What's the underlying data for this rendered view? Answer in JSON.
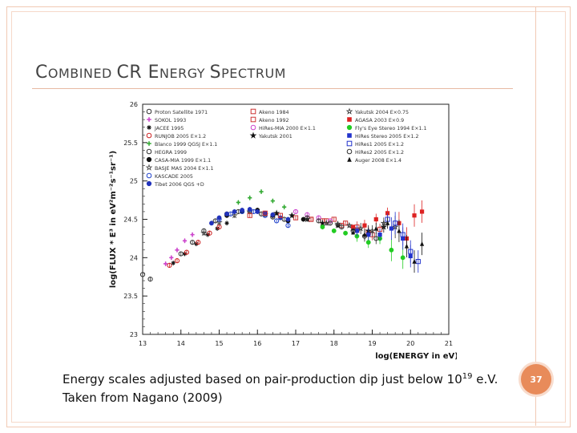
{
  "slide": {
    "title_parts": [
      {
        "text": "C",
        "small": false
      },
      {
        "text": "OMBINED ",
        "small": true
      },
      {
        "text": "CR E",
        "small": false
      },
      {
        "text": "NERGY ",
        "small": true
      },
      {
        "text": "S",
        "small": false
      },
      {
        "text": "PECTRUM",
        "small": true
      }
    ],
    "caption_line1_pre": "Energy scales adjusted based on pair-production dip just below 10",
    "caption_sup": "19",
    "caption_line1_post": " e.V.",
    "caption_line2": "Taken from Nagano (2009)",
    "page_number": "37",
    "accent_color": "#e88b5a"
  },
  "chart_data": {
    "type": "scatter",
    "xlabel": "log(ENERGY in eV)",
    "ylabel": "log(FLUX * E³ in eV²m⁻²s⁻¹sr⁻¹)",
    "xlim": [
      13,
      21
    ],
    "ylim": [
      23,
      26
    ],
    "xticks": [
      "13",
      "14",
      "15",
      "16",
      "17",
      "18",
      "19",
      "20",
      "21"
    ],
    "yticks": [
      "23",
      "23.5",
      "24",
      "24.5",
      "25",
      "25.5",
      "26"
    ],
    "legend_position": "top",
    "legend": [
      {
        "label": "Proton Satellite 1971",
        "marker": "circle-open",
        "color": "#333333"
      },
      {
        "label": "SOKOL 1993",
        "marker": "cross-open",
        "color": "#cc44cc"
      },
      {
        "label": "JACEE 1995",
        "marker": "asterisk",
        "color": "#111111"
      },
      {
        "label": "RUNJOB 2005 E×1.2",
        "marker": "circle-open",
        "color": "#cc2222"
      },
      {
        "label": "Blanco 1999 QGSJ E×1.1",
        "marker": "cross-open",
        "color": "#33aa33"
      },
      {
        "label": "HEGRA 1999",
        "marker": "circle-open",
        "color": "#333333"
      },
      {
        "label": "CASA-MIA 1999 E×1.1",
        "marker": "circle-filled",
        "color": "#111111"
      },
      {
        "label": "BASJE MAS 2004 E×1.1",
        "marker": "star-open",
        "color": "#444444"
      },
      {
        "label": "KASCADE 2005",
        "marker": "circle-open",
        "color": "#2244cc"
      },
      {
        "label": "Tibet 2006 QGS +D",
        "marker": "circle-filled",
        "color": "#2233bb"
      },
      {
        "label": "Akeno 1984",
        "marker": "square-open",
        "color": "#cc3333"
      },
      {
        "label": "Akeno 1992",
        "marker": "square-open",
        "color": "#cc3333"
      },
      {
        "label": "HiRes-MIA 2000 E×1.1",
        "marker": "circle-open",
        "color": "#cc44cc"
      },
      {
        "label": "Yakutsk 2001",
        "marker": "star-filled",
        "color": "#111111"
      },
      {
        "label": "Yakutsk 2004 E×0.75",
        "marker": "star-open",
        "color": "#333333"
      },
      {
        "label": "AGASA 2003 E×0.9",
        "marker": "square-filled",
        "color": "#dd2222"
      },
      {
        "label": "Fly's Eye Stereo 1994 E×1.1",
        "marker": "circle-filled",
        "color": "#22cc22"
      },
      {
        "label": "HiRes Stereo 2005 E×1.2",
        "marker": "square-filled",
        "color": "#2233cc"
      },
      {
        "label": "HiRes1 2005 E×1.2",
        "marker": "square-open",
        "color": "#2233cc"
      },
      {
        "label": "HiRes2 2005 E×1.2",
        "marker": "circle-open",
        "color": "#333333"
      },
      {
        "label": "Auger 2008 E×1.4",
        "marker": "triangle-filled",
        "color": "#111111"
      }
    ],
    "series": [
      {
        "name": "Proton Satellite 1971",
        "marker": "circle-open",
        "color": "#333333",
        "x": [
          13.0,
          13.2
        ],
        "y": [
          23.78,
          23.72
        ]
      },
      {
        "name": "SOKOL 1993",
        "marker": "cross-open",
        "color": "#cc44cc",
        "x": [
          13.6,
          13.75,
          13.9,
          14.1,
          14.3
        ],
        "y": [
          23.92,
          24.0,
          24.1,
          24.22,
          24.3
        ]
      },
      {
        "name": "JACEE 1995",
        "marker": "asterisk",
        "color": "#111111",
        "x": [
          13.8,
          14.1,
          14.4,
          14.7,
          14.95,
          15.2
        ],
        "y": [
          23.93,
          24.05,
          24.18,
          24.3,
          24.38,
          24.45
        ]
      },
      {
        "name": "RUNJOB 2005 E×1.2",
        "marker": "circle-open",
        "color": "#cc2222",
        "x": [
          13.7,
          13.9,
          14.15,
          14.45,
          14.75,
          15.0
        ],
        "y": [
          23.9,
          23.96,
          24.07,
          24.2,
          24.32,
          24.4
        ]
      },
      {
        "name": "Blanco 1999 QGSJ E×1.1",
        "marker": "cross-open",
        "color": "#33aa33",
        "x": [
          15.5,
          15.8,
          16.1,
          16.4,
          16.7
        ],
        "y": [
          24.72,
          24.78,
          24.86,
          24.74,
          24.66
        ]
      },
      {
        "name": "HEGRA 1999",
        "marker": "circle-open",
        "color": "#333333",
        "x": [
          14.0,
          14.3,
          14.6,
          14.9,
          15.2,
          15.5,
          15.8,
          16.1,
          16.4,
          16.7
        ],
        "y": [
          24.05,
          24.2,
          24.35,
          24.48,
          24.57,
          24.6,
          24.6,
          24.57,
          24.53,
          24.5
        ]
      },
      {
        "name": "CASA-MIA 1999 E×1.1",
        "marker": "circle-filled",
        "color": "#111111",
        "x": [
          15.2,
          15.6,
          16.0,
          16.4,
          16.8,
          17.2
        ],
        "y": [
          24.55,
          24.6,
          24.62,
          24.55,
          24.48,
          24.5
        ]
      },
      {
        "name": "BASJE MAS 2004 E×1.1",
        "marker": "star-open",
        "color": "#444444",
        "x": [
          14.6,
          15.0,
          15.4,
          15.8,
          16.2
        ],
        "y": [
          24.32,
          24.46,
          24.55,
          24.6,
          24.56
        ]
      },
      {
        "name": "KASCADE 2005",
        "marker": "circle-open",
        "color": "#2244cc",
        "x": [
          15.0,
          15.3,
          15.6,
          15.9,
          16.2,
          16.5,
          16.8
        ],
        "y": [
          24.5,
          24.57,
          24.6,
          24.6,
          24.55,
          24.48,
          24.42
        ]
      },
      {
        "name": "Tibet 2006 QGS +D",
        "marker": "circle-filled",
        "color": "#2233bb",
        "x": [
          14.8,
          15.0,
          15.2,
          15.4,
          15.6,
          15.8,
          16.0,
          16.2,
          16.4,
          16.6,
          16.8
        ],
        "y": [
          24.45,
          24.52,
          24.57,
          24.6,
          24.62,
          24.63,
          24.6,
          24.58,
          24.56,
          24.52,
          24.5
        ]
      },
      {
        "name": "Akeno 1984",
        "marker": "square-open",
        "color": "#cc3333",
        "x": [
          15.8,
          16.2,
          16.6,
          17.0,
          17.4,
          17.8,
          18.2,
          18.6,
          19.0
        ],
        "y": [
          24.55,
          24.58,
          24.55,
          24.52,
          24.5,
          24.48,
          24.42,
          24.36,
          24.3
        ]
      },
      {
        "name": "Akeno 1992",
        "marker": "square-open",
        "color": "#cc3333",
        "x": [
          17.4,
          17.7,
          18.0,
          18.3,
          18.6,
          18.9,
          19.2
        ],
        "y": [
          24.5,
          24.48,
          24.5,
          24.45,
          24.4,
          24.33,
          24.37
        ]
      },
      {
        "name": "HiRes-MIA 2000 E×1.1",
        "marker": "circle-open",
        "color": "#cc44cc",
        "x": [
          17.0,
          17.3,
          17.6,
          17.9
        ],
        "y": [
          24.6,
          24.56,
          24.52,
          24.48
        ]
      },
      {
        "name": "Yakutsk 2001",
        "marker": "star-filled",
        "color": "#111111",
        "x": [
          16.5,
          16.9,
          17.3,
          17.7,
          18.1,
          18.5,
          18.9,
          19.3
        ],
        "y": [
          24.58,
          24.55,
          24.5,
          24.45,
          24.42,
          24.38,
          24.35,
          24.4
        ]
      },
      {
        "name": "Yakutsk 2004 E×0.75",
        "marker": "star-open",
        "color": "#333333",
        "x": [
          17.8,
          18.1,
          18.4,
          18.7,
          19.0,
          19.3,
          19.6
        ],
        "y": [
          24.45,
          24.44,
          24.42,
          24.38,
          24.35,
          24.45,
          24.4
        ]
      },
      {
        "name": "AGASA 2003 E×0.9",
        "marker": "square-filled",
        "color": "#dd2222",
        "x": [
          18.5,
          18.8,
          19.1,
          19.4,
          19.7,
          19.9,
          20.1,
          20.3
        ],
        "y": [
          24.4,
          24.42,
          24.5,
          24.58,
          24.45,
          24.25,
          24.55,
          24.6
        ]
      },
      {
        "name": "Fly's Eye Stereo 1994 E×1.1",
        "marker": "circle-filled",
        "color": "#22cc22",
        "x": [
          17.7,
          18.0,
          18.3,
          18.6,
          18.9,
          19.2,
          19.5,
          19.8
        ],
        "y": [
          24.4,
          24.35,
          24.32,
          24.28,
          24.2,
          24.25,
          24.1,
          24.0
        ]
      },
      {
        "name": "HiRes Stereo 2005 E×1.2",
        "marker": "square-filled",
        "color": "#2233cc",
        "x": [
          18.6,
          18.9,
          19.2,
          19.5,
          19.8,
          20.0
        ],
        "y": [
          24.35,
          24.3,
          24.3,
          24.38,
          24.25,
          24.02
        ]
      },
      {
        "name": "HiRes1 2005 E×1.2",
        "marker": "square-open",
        "color": "#2233cc",
        "x": [
          19.4,
          19.6,
          19.8,
          20.0,
          20.2
        ],
        "y": [
          24.5,
          24.45,
          24.3,
          24.08,
          23.95
        ]
      },
      {
        "name": "HiRes2 2005 E×1.2",
        "marker": "circle-open",
        "color": "#333333",
        "x": [
          17.3,
          17.6,
          17.9,
          18.2,
          18.5,
          18.8,
          19.1
        ],
        "y": [
          24.52,
          24.48,
          24.45,
          24.4,
          24.35,
          24.28,
          24.25
        ]
      },
      {
        "name": "Auger 2008 E×1.4",
        "marker": "triangle-filled",
        "color": "#111111",
        "x": [
          18.5,
          18.8,
          19.1,
          19.4,
          19.7,
          19.9,
          20.1,
          20.3
        ],
        "y": [
          24.33,
          24.3,
          24.38,
          24.45,
          24.35,
          24.15,
          23.95,
          24.18
        ]
      }
    ]
  }
}
